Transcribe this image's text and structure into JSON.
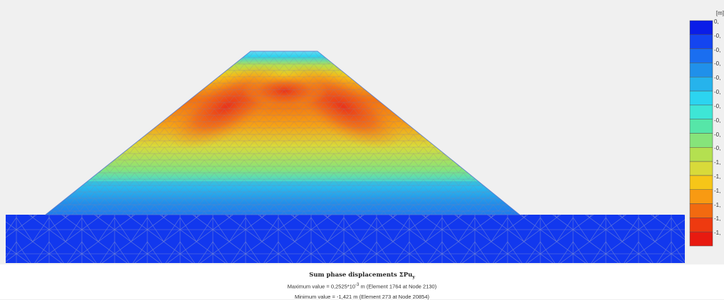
{
  "legend": {
    "unit": "[m]",
    "colors": [
      "#0a1de8",
      "#1445f0",
      "#1a6ef0",
      "#2090ea",
      "#26b3ec",
      "#2cd4f0",
      "#3ee6d6",
      "#56e6a8",
      "#86e47a",
      "#b4e050",
      "#d8da3a",
      "#f6c618",
      "#f89a12",
      "#f26a10",
      "#ee3a10",
      "#e81a10"
    ],
    "labels": [
      "0,",
      "-0,",
      "-0,",
      "-0,",
      "-0,",
      "-0,",
      "-0,",
      "-0,",
      "-0,",
      "-0,",
      "-1,",
      "-1,",
      "-1,",
      "-1,",
      "-1,",
      "-1,"
    ]
  },
  "caption": {
    "title": "Sum phase displacements ΣPu",
    "title_subscript": "y",
    "max_prefix": "Maximum value = 0,2525*10",
    "max_exponent": "-3",
    "max_suffix": " m (Element 1764 at Node 2130)",
    "min_text": "Minimum value = -1,421 m (Element 273 at Node 20854)"
  }
}
